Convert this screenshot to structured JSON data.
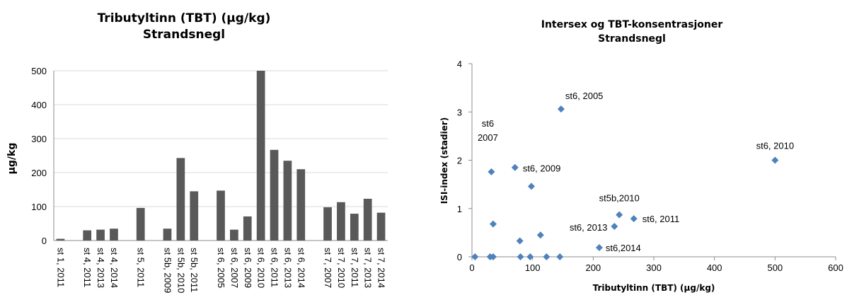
{
  "chart_data": [
    {
      "type": "bar",
      "title": "Tributyltinn (TBT) (µg/kg)",
      "subtitle": "Strandsnegl",
      "ylabel": "µg/kg",
      "ylim": [
        0,
        500
      ],
      "yticks": [
        0,
        100,
        200,
        300,
        400,
        500
      ],
      "grid": true,
      "bar_color": "#595959",
      "categories": [
        "st 1, 2011",
        "",
        "st 4, 2011",
        "st 4, 2013",
        "st 4, 2014",
        "",
        "st 5, 2011",
        "",
        "st 5b, 2009",
        "st 5b, 2010",
        "st 5b, 2011",
        "",
        "st 6, 2005",
        "st 6, 2007",
        "st 6, 2009",
        "st 6, 2010",
        "st 6, 2011",
        "st 6, 2013",
        "st 6, 2014",
        "",
        "st 7, 2007",
        "st 7, 2010",
        "st 7, 2011",
        "st 7, 2013",
        "st 7, 2014"
      ],
      "values": [
        5,
        null,
        30,
        32,
        35,
        null,
        96,
        null,
        35,
        243,
        145,
        null,
        147,
        32,
        71,
        500,
        267,
        235,
        210,
        null,
        98,
        113,
        79,
        123,
        82
      ]
    },
    {
      "type": "scatter",
      "title": "Intersex og TBT-konsentrasjoner",
      "subtitle": "Strandsnegl",
      "xlabel": "Tributyltinn (TBT) (µg/kg)",
      "ylabel": "ISI-index (stadier)",
      "xlim": [
        0,
        600
      ],
      "ylim": [
        0,
        4
      ],
      "xticks": [
        0,
        100,
        200,
        300,
        400,
        500,
        600
      ],
      "yticks": [
        0,
        1,
        2,
        3,
        4
      ],
      "grid": false,
      "marker_color": "#4F81BD",
      "points": [
        {
          "x": 5,
          "y": 0
        },
        {
          "x": 30,
          "y": 0
        },
        {
          "x": 35,
          "y": 0
        },
        {
          "x": 80,
          "y": 0
        },
        {
          "x": 96,
          "y": 0
        },
        {
          "x": 123,
          "y": 0
        },
        {
          "x": 145,
          "y": 0
        },
        {
          "x": 32,
          "y": 1.76
        },
        {
          "x": 35,
          "y": 0.68
        },
        {
          "x": 71,
          "y": 1.85
        },
        {
          "x": 98,
          "y": 1.46
        },
        {
          "x": 79,
          "y": 0.33
        },
        {
          "x": 113,
          "y": 0.45
        },
        {
          "x": 147,
          "y": 3.06
        },
        {
          "x": 210,
          "y": 0.19
        },
        {
          "x": 235,
          "y": 0.63
        },
        {
          "x": 243,
          "y": 0.87
        },
        {
          "x": 267,
          "y": 0.79
        },
        {
          "x": 500,
          "y": 2.0
        }
      ],
      "annotations": [
        {
          "text": "st6, 2005",
          "x": 147,
          "y": 3.06
        },
        {
          "text": "st6",
          "x": 32,
          "y": 1.76
        },
        {
          "text": "2007",
          "x": 32,
          "y": 1.76
        },
        {
          "text": "st6, 2009",
          "x": 71,
          "y": 1.85
        },
        {
          "text": "st6, 2010",
          "x": 500,
          "y": 2.0
        },
        {
          "text": "st5b,2010",
          "x": 243,
          "y": 0.87
        },
        {
          "text": "st6, 2011",
          "x": 267,
          "y": 0.79
        },
        {
          "text": "st6, 2013",
          "x": 235,
          "y": 0.63
        },
        {
          "text": "st6,2014",
          "x": 210,
          "y": 0.19
        }
      ]
    }
  ]
}
